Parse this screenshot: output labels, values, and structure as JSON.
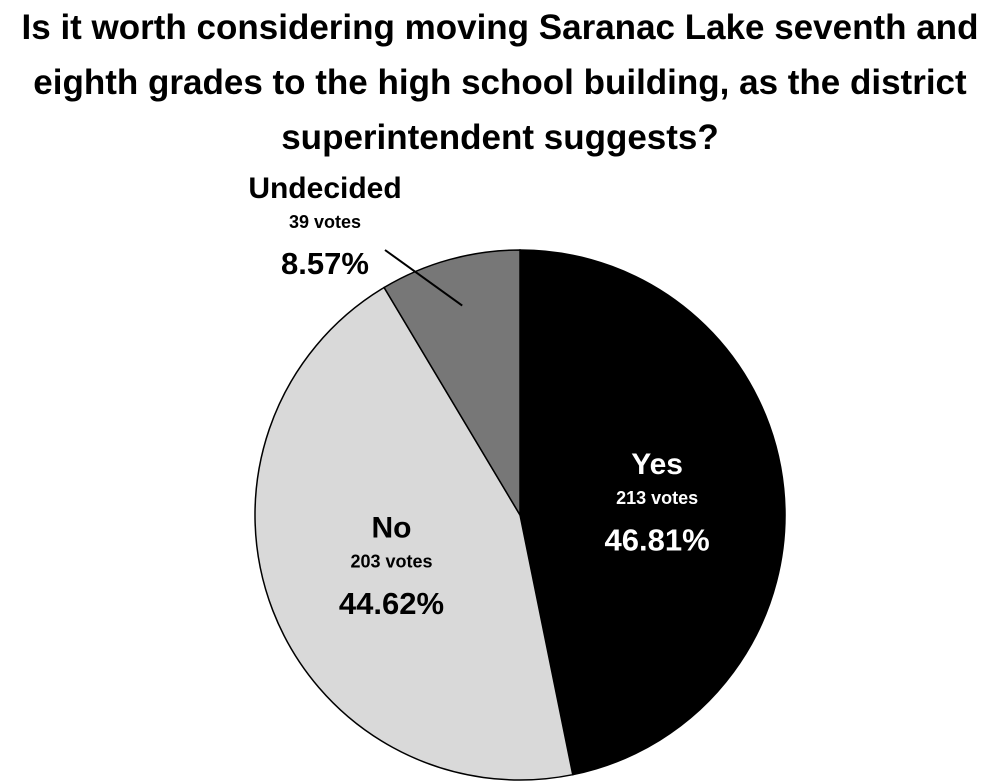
{
  "chart_data": {
    "type": "pie",
    "title": "Is it worth considering moving Saranac Lake seventh and eighth grades to the high school building, as the district superintendent suggests?",
    "categories": [
      "Yes",
      "No",
      "Undecided"
    ],
    "values": [
      46.81,
      44.62,
      8.57
    ],
    "value_labels": [
      "46.81%",
      "44.62%",
      "8.57%"
    ],
    "vote_labels": [
      "213 votes",
      "203 votes",
      "39 votes"
    ],
    "colors": [
      "#000000",
      "#d9d9d9",
      "#777777"
    ]
  }
}
